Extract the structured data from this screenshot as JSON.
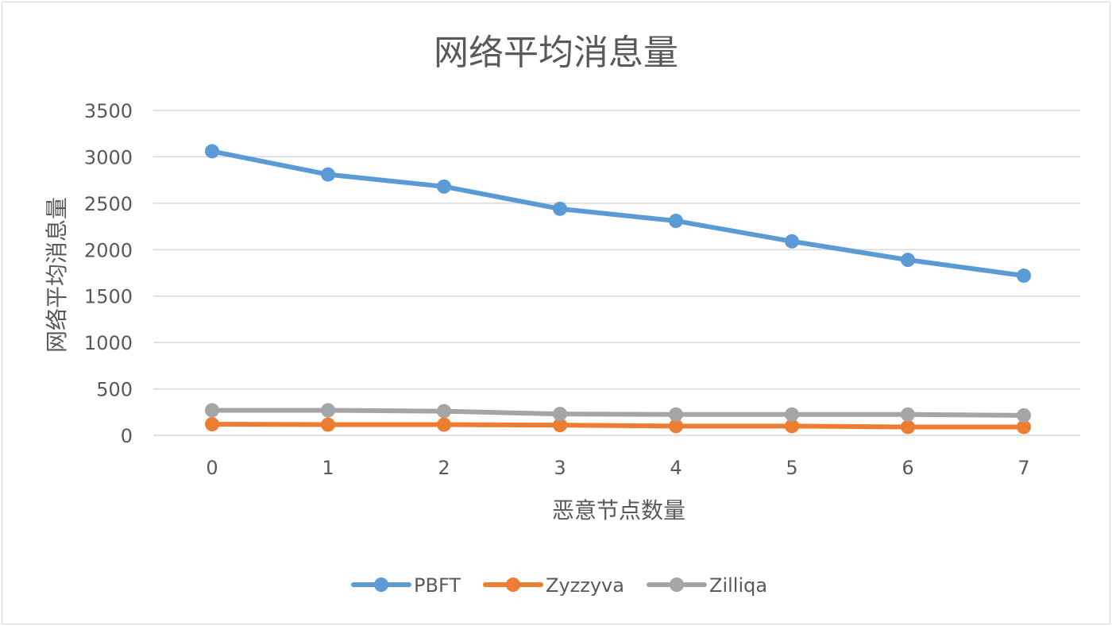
{
  "chart_data": {
    "type": "line",
    "title": "网络平均消息量",
    "xlabel": "恶意节点数量",
    "ylabel": "网络平均消息量",
    "x": [
      0,
      1,
      2,
      3,
      4,
      5,
      6,
      7
    ],
    "x_tick_labels": [
      "0",
      "1",
      "2",
      "3",
      "4",
      "5",
      "6",
      "7"
    ],
    "ylim": [
      0,
      3500
    ],
    "y_ticks": [
      0,
      500,
      1000,
      1500,
      2000,
      2500,
      3000,
      3500
    ],
    "y_tick_labels": [
      "0",
      "500",
      "1000",
      "1500",
      "2000",
      "2500",
      "3000",
      "3500"
    ],
    "grid": true,
    "legend_position": "bottom",
    "series": [
      {
        "name": "PBFT",
        "color": "#5b9bd5",
        "values": [
          3060,
          2810,
          2680,
          2440,
          2310,
          2090,
          1890,
          1720
        ]
      },
      {
        "name": "Zyzzyva",
        "color": "#ed7d31",
        "values": [
          120,
          115,
          115,
          110,
          100,
          100,
          90,
          90
        ]
      },
      {
        "name": "Zilliqa",
        "color": "#a5a5a5",
        "values": [
          270,
          270,
          260,
          230,
          225,
          225,
          225,
          215
        ]
      }
    ]
  }
}
